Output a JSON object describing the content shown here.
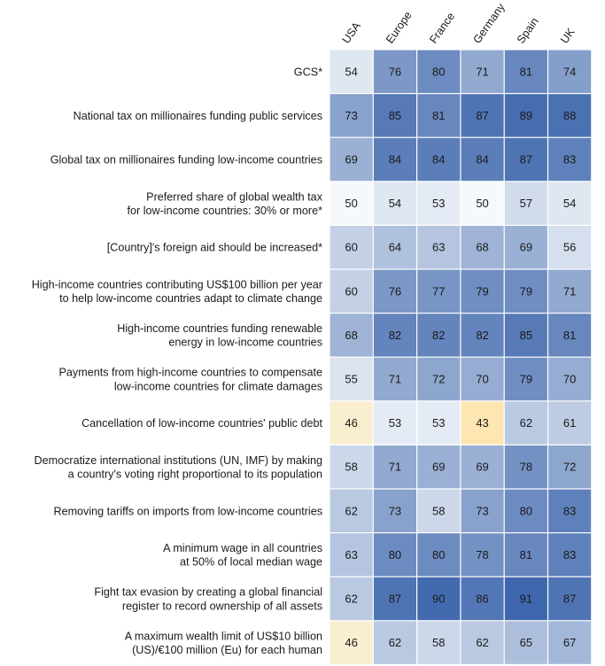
{
  "chart_data": {
    "type": "heatmap",
    "columns": [
      "USA",
      "Europe",
      "France",
      "Germany",
      "Spain",
      "UK"
    ],
    "rows": [
      {
        "label": [
          "GCS*"
        ],
        "values": [
          54,
          76,
          80,
          71,
          81,
          74
        ]
      },
      {
        "label": [
          "National tax on millionaires funding public services"
        ],
        "values": [
          73,
          85,
          81,
          87,
          89,
          88
        ]
      },
      {
        "label": [
          "Global tax on millionaires funding low-income countries"
        ],
        "values": [
          69,
          84,
          84,
          84,
          87,
          83
        ]
      },
      {
        "label": [
          "Preferred share of global wealth tax",
          "for low-income countries: 30% or more*"
        ],
        "values": [
          50,
          54,
          53,
          50,
          57,
          54
        ]
      },
      {
        "label": [
          "[Country]'s foreign aid should be increased*"
        ],
        "values": [
          60,
          64,
          63,
          68,
          69,
          56
        ]
      },
      {
        "label": [
          "High-income countries contributing US$100 billion per year",
          "to help low-income countries adapt to climate change"
        ],
        "values": [
          60,
          76,
          77,
          79,
          79,
          71
        ]
      },
      {
        "label": [
          "High-income countries funding renewable",
          "energy in low-income countries"
        ],
        "values": [
          68,
          82,
          82,
          82,
          85,
          81
        ]
      },
      {
        "label": [
          "Payments from high-income countries to compensate",
          "low-income countries for climate damages"
        ],
        "values": [
          55,
          71,
          72,
          70,
          79,
          70
        ]
      },
      {
        "label": [
          "Cancellation of low-income countries' public debt"
        ],
        "values": [
          46,
          53,
          53,
          43,
          62,
          61
        ]
      },
      {
        "label": [
          "Democratize international institutions (UN, IMF) by making",
          "a country's voting right proportional to its population"
        ],
        "values": [
          58,
          71,
          69,
          69,
          78,
          72
        ]
      },
      {
        "label": [
          "Removing tariffs on imports from low-income countries"
        ],
        "values": [
          62,
          73,
          58,
          73,
          80,
          83
        ]
      },
      {
        "label": [
          "A minimum wage in all countries",
          "at 50% of local median wage"
        ],
        "values": [
          63,
          80,
          80,
          78,
          81,
          83
        ]
      },
      {
        "label": [
          "Fight tax evasion by creating a global financial",
          "register to record ownership of all assets"
        ],
        "values": [
          62,
          87,
          90,
          86,
          91,
          87
        ]
      },
      {
        "label": [
          "A maximum wealth limit of US$10 billion",
          "(US)/€100 million (Eu) for each human"
        ],
        "values": [
          46,
          62,
          58,
          62,
          65,
          67
        ]
      }
    ],
    "color_scale": {
      "low_value": 43,
      "low_color": "#fde6b2",
      "mid_value": 50,
      "mid_color": "#f6f9fb",
      "high_value": 91,
      "high_color": "#3f67ad"
    },
    "legend": "none",
    "grid": false
  }
}
